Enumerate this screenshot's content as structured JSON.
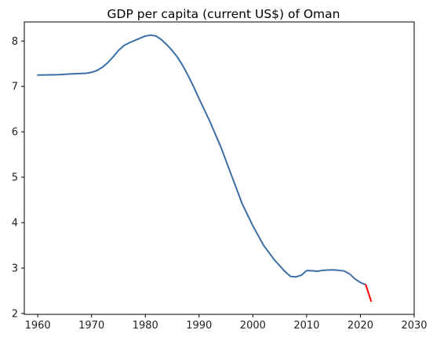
{
  "chart_data": {
    "type": "line",
    "title": "GDP per capita (current US$) of Oman",
    "xlabel": "",
    "ylabel": "",
    "xlim": [
      1957.5,
      2030
    ],
    "ylim": [
      1.98,
      8.42
    ],
    "xticks": [
      1960,
      1970,
      1980,
      1990,
      2000,
      2010,
      2020,
      2030
    ],
    "yticks": [
      2,
      3,
      4,
      5,
      6,
      7,
      8
    ],
    "grid": false,
    "legend": "none",
    "series": [
      {
        "color": "#3b6ea5",
        "x": [
          1960,
          1962,
          1964,
          1966,
          1968,
          1969,
          1970,
          1971,
          1972,
          1973,
          1974,
          1975,
          1976,
          1977,
          1978,
          1979,
          1980,
          1981,
          1982,
          1983,
          1984,
          1985,
          1986,
          1987,
          1988,
          1989,
          1990,
          1992,
          1994,
          1996,
          1998,
          2000,
          2002,
          2004,
          2006,
          2007,
          2008,
          2009,
          2010,
          2011,
          2012,
          2013,
          2014,
          2015,
          2016,
          2017,
          2018,
          2019,
          2020,
          2021
        ],
        "values": [
          7.25,
          7.255,
          7.26,
          7.275,
          7.285,
          7.29,
          7.31,
          7.35,
          7.42,
          7.52,
          7.65,
          7.79,
          7.9,
          7.96,
          8.01,
          8.06,
          8.11,
          8.13,
          8.11,
          8.03,
          7.92,
          7.79,
          7.64,
          7.45,
          7.23,
          6.99,
          6.73,
          6.23,
          5.68,
          5.05,
          4.42,
          3.93,
          3.5,
          3.18,
          2.92,
          2.815,
          2.805,
          2.84,
          2.945,
          2.94,
          2.93,
          2.95,
          2.955,
          2.96,
          2.95,
          2.935,
          2.87,
          2.76,
          2.68,
          2.63
        ]
      },
      {
        "color": "#ff0000",
        "x": [
          2021,
          2022
        ],
        "values": [
          2.63,
          2.27
        ]
      }
    ]
  }
}
